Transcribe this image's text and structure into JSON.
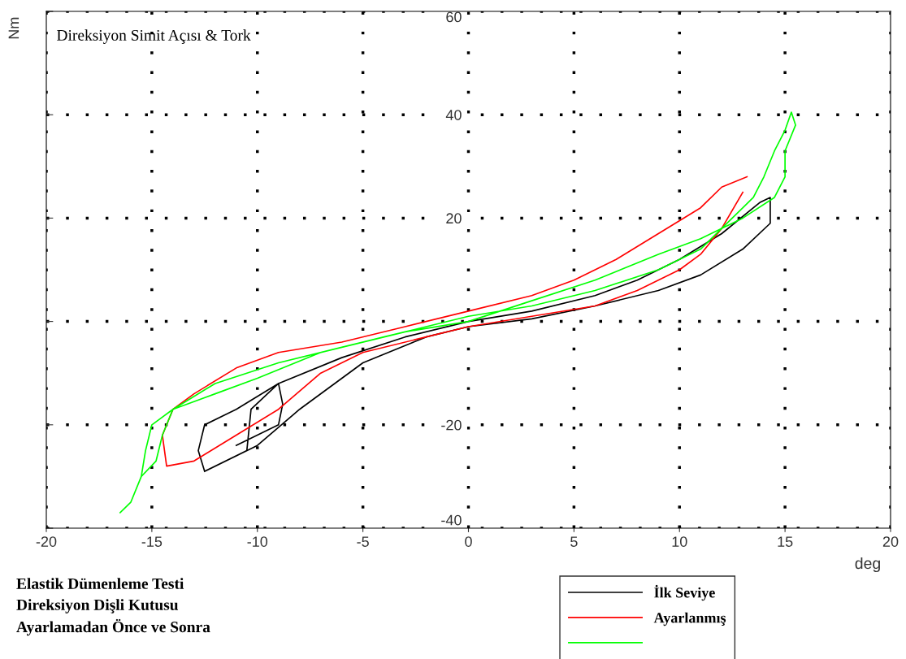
{
  "chart_data": {
    "type": "line",
    "title": "Direksiyon Simit Açısı & Tork",
    "xlabel": "deg",
    "ylabel": "Nm",
    "xlim": [
      -20,
      20
    ],
    "xticks": [
      -20,
      -15,
      -10,
      -5,
      0,
      5,
      10,
      15,
      20
    ],
    "ylim": [
      -40,
      60
    ],
    "yticks": [
      -40,
      -20,
      {
        "value": 0,
        "label": null
      },
      20,
      40,
      60
    ],
    "grid": true,
    "legend": "bottom",
    "marker": "none",
    "line_style": "solid",
    "annotations": [
      "Elastik Dümenleme Testi",
      "Direksiyon Dişli Kutusu",
      "Ayarlamadan Önce ve Sonra"
    ],
    "series": [
      {
        "name": "İlk Seviye",
        "color": "#000000",
        "x": [
          -12.5,
          -11,
          -10,
          -8,
          -5,
          -2,
          0,
          3,
          6,
          9,
          11,
          13,
          14.3,
          14.3,
          13.8,
          12,
          10,
          8,
          6,
          3,
          0,
          -3,
          -6,
          -9,
          -11,
          -12.5,
          -12.8,
          -12.5,
          -10.5,
          -10.3,
          -9,
          -8.8,
          -9,
          -11
        ],
        "values": [
          -29,
          -26,
          -24,
          -17,
          -8,
          -3,
          -1,
          0.5,
          3,
          6,
          9,
          14,
          19,
          24,
          23,
          17,
          12,
          8,
          5,
          2,
          0,
          -3,
          -7,
          -12,
          -17,
          -20,
          -25,
          -29,
          -25,
          -17,
          -12,
          -16,
          -20,
          -24
        ]
      },
      {
        "name": "Ayarlanmış",
        "color": "#ff0000",
        "x": [
          13.2,
          12,
          11,
          9,
          7,
          5,
          3,
          0,
          -3,
          -6,
          -9,
          -11,
          -13,
          -14,
          -14.5,
          -14.3,
          -13,
          -11,
          -9,
          -7,
          -5,
          -2,
          0,
          3,
          6,
          8,
          10,
          11,
          12,
          13
        ],
        "values": [
          28,
          26,
          22,
          17,
          12,
          8,
          5,
          2,
          -1,
          -4,
          -6,
          -9,
          -14,
          -17,
          -22,
          -28,
          -27,
          -22,
          -17,
          -10,
          -6,
          -3,
          -1,
          1,
          3,
          6,
          10,
          13,
          18,
          25
        ]
      },
      {
        "color": "#00ff00",
        "x": [
          -16.5,
          -16,
          -15.5,
          -15.3,
          -15,
          -14,
          -12,
          -10,
          -7,
          -4,
          -2,
          0,
          3,
          6,
          9,
          11,
          12.5,
          13.5,
          14,
          14.5,
          15,
          15.3,
          15.5,
          15,
          15,
          14.5,
          13,
          11,
          9,
          6,
          3,
          0,
          -3,
          -6,
          -9,
          -12,
          -14,
          -14.5,
          -14.8,
          -15.5
        ],
        "values": [
          -37,
          -35,
          -30,
          -25,
          -20,
          -17,
          -14,
          -11,
          -6,
          -3,
          -1,
          1,
          3,
          6,
          10,
          14,
          20,
          24,
          28,
          33,
          37,
          40.5,
          38,
          33,
          28,
          24,
          20,
          16,
          13,
          8,
          4,
          0,
          -2,
          -5,
          -8,
          -12,
          -17,
          -22,
          -27,
          -30
        ]
      }
    ]
  }
}
